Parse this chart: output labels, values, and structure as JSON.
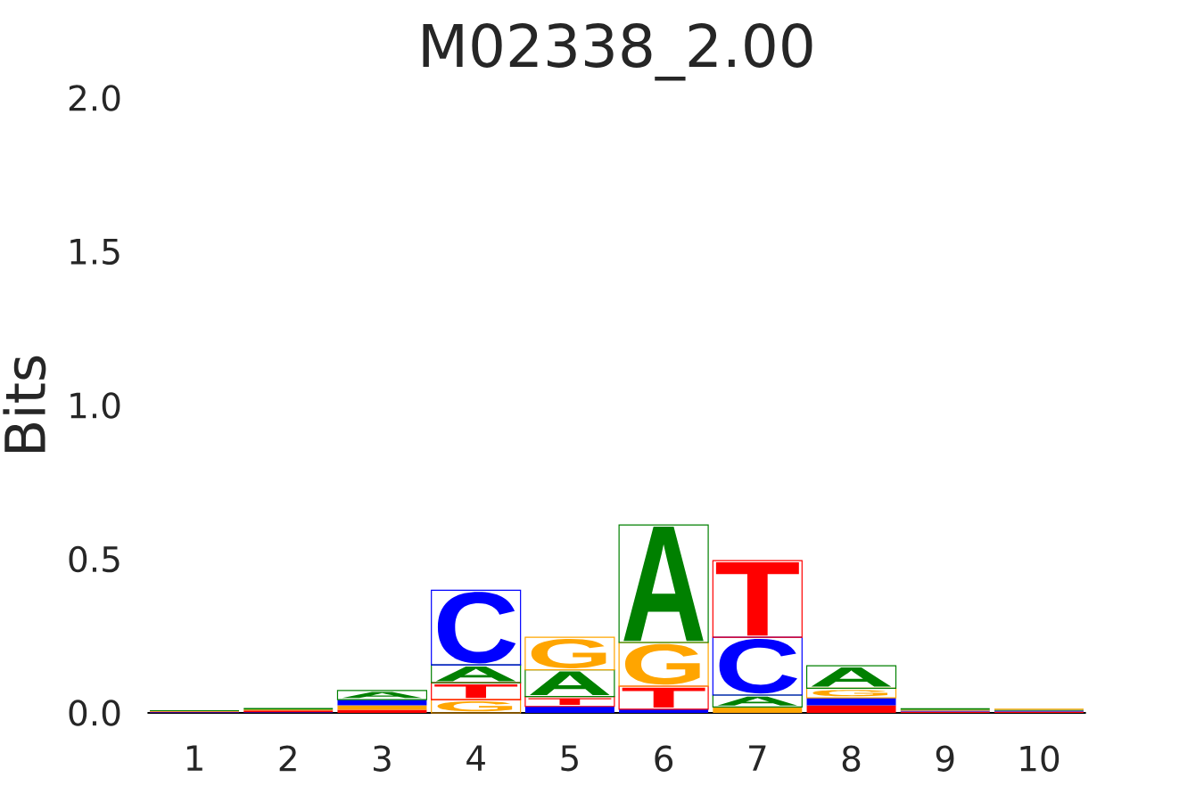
{
  "chart_data": {
    "type": "bar",
    "title": "M02338_2.00",
    "ylabel": "Bits",
    "categories": [
      "1",
      "2",
      "3",
      "4",
      "5",
      "6",
      "7",
      "8",
      "9",
      "10"
    ],
    "stacked": true,
    "ylim": [
      0,
      2
    ],
    "yticks": [
      {
        "value": 0,
        "label": "0.0"
      },
      {
        "value": 0.5,
        "label": "0.5"
      },
      {
        "value": 1,
        "label": "1.0"
      },
      {
        "value": 1.5,
        "label": "1.5"
      },
      {
        "value": 2,
        "label": "2.0"
      }
    ],
    "series": [
      {
        "values": [
          0.002,
          0.002,
          0.01,
          0.043,
          0.021,
          0.012,
          0.019,
          0.025,
          0.004,
          0.004
        ],
        "value_labels": [
          null,
          null,
          null,
          "G",
          null,
          null,
          null,
          null,
          null,
          null
        ],
        "colors": [
          "#0000ff",
          "#0000ff",
          "#ff0000",
          "#ffa500",
          "#0000ff",
          "#0000ff",
          "#ffa500",
          "#ff0000",
          "#ff0000",
          "#ff0000"
        ]
      },
      {
        "values": [
          0.002,
          0.006,
          0.015,
          0.055,
          0.032,
          0.075,
          0.039,
          0.024,
          0.003,
          0.003
        ],
        "value_labels": [
          null,
          null,
          null,
          "T",
          "T",
          "T",
          "A",
          null,
          null,
          null
        ],
        "colors": [
          "#ff0000",
          "#ff0000",
          "#ffa500",
          "#ff0000",
          "#ff0000",
          "#ff0000",
          "#008000",
          "#0000ff",
          "#0000ff",
          "#0000ff"
        ]
      },
      {
        "values": [
          0.002,
          0.003,
          0.018,
          0.058,
          0.087,
          0.142,
          0.188,
          0.031,
          0.003,
          0.003
        ],
        "value_labels": [
          null,
          null,
          null,
          "A",
          "A",
          "G",
          "C",
          "G",
          null,
          null
        ],
        "colors": [
          "#ffa500",
          "#ffa500",
          "#0000ff",
          "#008000",
          "#008000",
          "#ffa500",
          "#0000ff",
          "#ffa500",
          "#ffa500",
          "#008000"
        ]
      },
      {
        "values": [
          0.003,
          0.005,
          0.03,
          0.243,
          0.106,
          0.382,
          0.249,
          0.073,
          0.005,
          0.004
        ],
        "value_labels": [
          null,
          null,
          "A",
          "C",
          "G",
          "A",
          "T",
          "A",
          null,
          null
        ],
        "colors": [
          "#008000",
          "#008000",
          "#008000",
          "#0000ff",
          "#ffa500",
          "#008000",
          "#ff0000",
          "#008000",
          "#008000",
          "#ffa500"
        ]
      }
    ]
  }
}
